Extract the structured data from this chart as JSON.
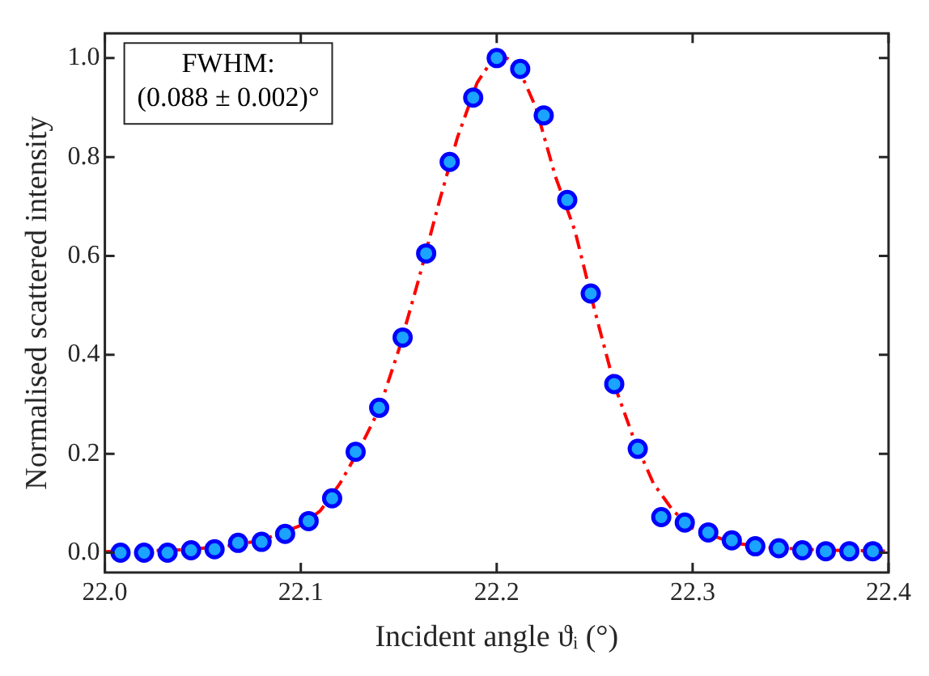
{
  "chart_data": {
    "type": "scatter",
    "xlabel": "Incident angle ϑᵢ (°)",
    "ylabel": "Normalised scattered intensity",
    "annotations": [
      "FWHM:",
      "(0.088 ± 0.002)°"
    ],
    "xlim": [
      22.0,
      22.4
    ],
    "xticks": [
      {
        "value": 22.0,
        "label": "22.0"
      },
      22.1,
      22.2,
      22.3,
      {
        "value": 22.4,
        "label": "22.4"
      }
    ],
    "ylim": [
      -0.04,
      1.05
    ],
    "yticks": [
      {
        "value": 0,
        "label": "0.0"
      },
      0.2,
      0.4,
      0.6,
      0.8,
      {
        "value": 1,
        "label": "1.0"
      }
    ],
    "grid": false,
    "legend": false,
    "marker": "circle",
    "series": [
      {
        "type": "line",
        "color": "#ff0000",
        "line_style": "dashdot",
        "marker": "none",
        "x": [
          22.0,
          22.04,
          22.06,
          22.08,
          22.1,
          22.11,
          22.12,
          22.13,
          22.14,
          22.15,
          22.16,
          22.17,
          22.18,
          22.19,
          22.2,
          22.21,
          22.22,
          22.23,
          22.24,
          22.25,
          22.26,
          22.27,
          22.28,
          22.29,
          22.3,
          22.32,
          22.34,
          22.37,
          22.4
        ],
        "values": [
          0.002,
          0.006,
          0.012,
          0.025,
          0.055,
          0.085,
          0.14,
          0.21,
          0.29,
          0.41,
          0.55,
          0.7,
          0.84,
          0.95,
          1.01,
          0.99,
          0.9,
          0.76,
          0.65,
          0.49,
          0.34,
          0.23,
          0.14,
          0.085,
          0.05,
          0.02,
          0.01,
          0.005,
          0.003
        ]
      },
      {
        "type": "scatter",
        "color": "#0000ff",
        "x": [
          22.008,
          22.02,
          22.032,
          22.044,
          22.056,
          22.068,
          22.08,
          22.092,
          22.104,
          22.116,
          22.128,
          22.14,
          22.152,
          22.164,
          22.176,
          22.188,
          22.2,
          22.212,
          22.224,
          22.236,
          22.248,
          22.26,
          22.272,
          22.284,
          22.296,
          22.308,
          22.32,
          22.332,
          22.344,
          22.356,
          22.368,
          22.38,
          22.392
        ],
        "values": [
          0.0,
          0.0,
          0.0,
          0.005,
          0.007,
          0.02,
          0.022,
          0.038,
          0.064,
          0.11,
          0.204,
          0.293,
          0.435,
          0.605,
          0.79,
          0.92,
          1.0,
          0.978,
          0.884,
          0.713,
          0.524,
          0.341,
          0.21,
          0.072,
          0.061,
          0.041,
          0.025,
          0.013,
          0.009,
          0.005,
          0.003,
          0.003,
          0.003
        ]
      }
    ]
  }
}
